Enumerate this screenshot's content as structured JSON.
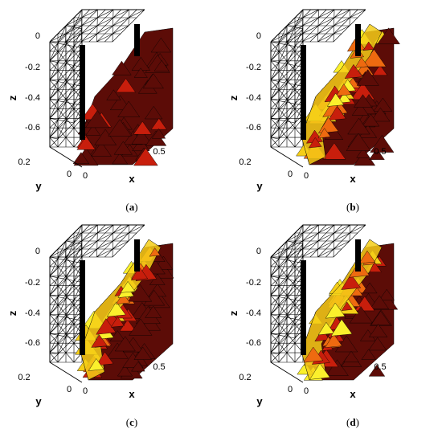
{
  "panels": [
    {
      "id": "a",
      "caption_open": "(",
      "caption_letter": "a",
      "caption_close": ")",
      "fill_level": 0.0,
      "z_ticks": [
        "0",
        "-0.2",
        "-0.4",
        "-0.6"
      ],
      "y_ticks": [
        "0.2",
        "0"
      ],
      "x_ticks": [
        "0",
        "0.5"
      ],
      "z_label": "z",
      "y_label": "y",
      "x_label": "x"
    },
    {
      "id": "b",
      "caption_open": "(",
      "caption_letter": "b",
      "caption_close": ")",
      "fill_level": 0.55,
      "z_ticks": [
        "0",
        "-0.2",
        "-0.4",
        "-0.6"
      ],
      "y_ticks": [
        "0.2",
        "0"
      ],
      "x_ticks": [
        "0",
        "0.5"
      ],
      "z_label": "z",
      "y_label": "y",
      "x_label": "x"
    },
    {
      "id": "c",
      "caption_open": "(",
      "caption_letter": "c",
      "caption_close": ")",
      "fill_level": 0.45,
      "z_ticks": [
        "0",
        "-0.2",
        "-0.4",
        "-0.6"
      ],
      "y_ticks": [
        "0.2",
        "0"
      ],
      "x_ticks": [
        "0",
        "0.5"
      ],
      "z_label": "z",
      "y_label": "y",
      "x_label": "x"
    },
    {
      "id": "d",
      "caption_open": "(",
      "caption_letter": "d",
      "caption_close": ")",
      "fill_level": 0.5,
      "z_ticks": [
        "0",
        "-0.2",
        "-0.4",
        "-0.6"
      ],
      "y_ticks": [
        "0.2",
        "0"
      ],
      "x_ticks": [
        "0",
        "0.5"
      ],
      "z_label": "z",
      "y_label": "y",
      "x_label": "x"
    }
  ],
  "colors": {
    "mesh": "#000000",
    "dark_red": "#5c0c07",
    "red": "#c81e0c",
    "orange": "#ee6a10",
    "yellow": "#f5ce17",
    "light_yellow": "#fbf02c",
    "rod": "#000000"
  }
}
